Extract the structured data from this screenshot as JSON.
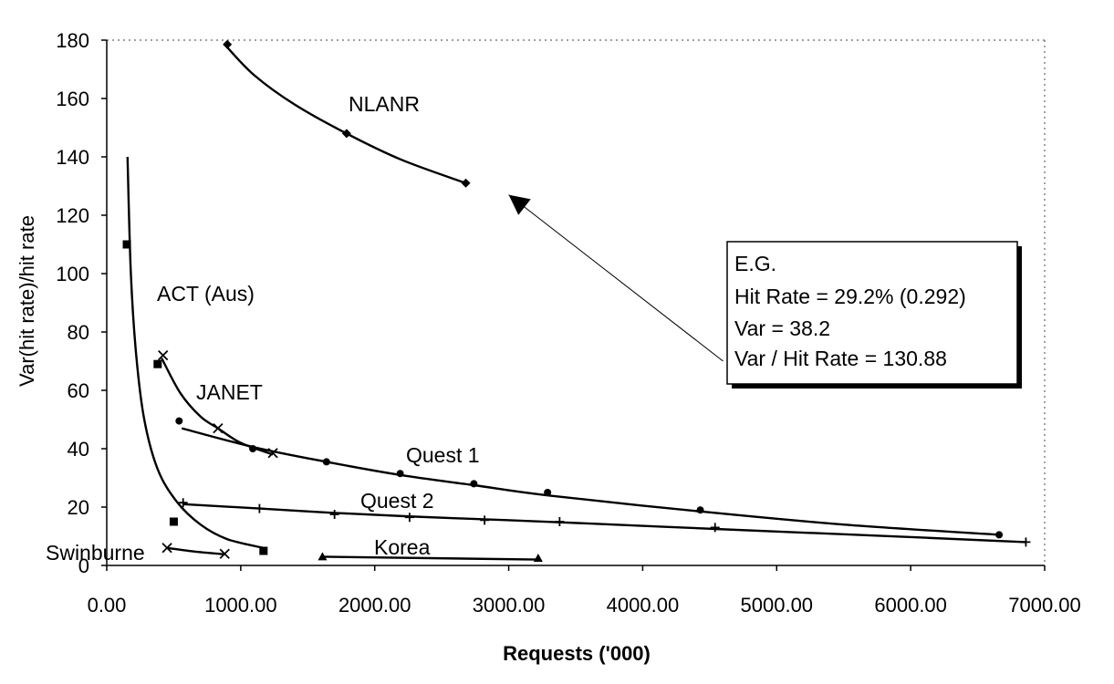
{
  "chart_data": {
    "type": "scatter",
    "xlabel": "Requests ('000)",
    "ylabel": "Var(hit rate)/hit rate",
    "xlim": [
      0,
      7000
    ],
    "ylim": [
      0,
      180
    ],
    "x_ticks": [
      "0.00",
      "1000.00",
      "2000.00",
      "3000.00",
      "4000.00",
      "5000.00",
      "6000.00",
      "7000.00"
    ],
    "y_ticks": [
      "0",
      "20",
      "40",
      "60",
      "80",
      "100",
      "120",
      "140",
      "160",
      "180"
    ],
    "grid": "dotted top and right border only",
    "legend": "none (series labelled directly)",
    "series": [
      {
        "name": "NLANR",
        "marker": "diamond",
        "points": [
          [
            900,
            178.5
          ],
          [
            1790,
            148
          ],
          [
            2680,
            131
          ]
        ],
        "fit": [
          [
            890,
            178
          ],
          [
            1100,
            168
          ],
          [
            1400,
            158
          ],
          [
            1790,
            148
          ],
          [
            2200,
            139
          ],
          [
            2680,
            131
          ]
        ]
      },
      {
        "name": "ACT (Aus)",
        "marker": "square",
        "points": [
          [
            150,
            110
          ],
          [
            380,
            69
          ],
          [
            500,
            15
          ],
          [
            1170,
            5
          ]
        ],
        "fit": [
          [
            155,
            140
          ],
          [
            180,
            100
          ],
          [
            220,
            72
          ],
          [
            280,
            50
          ],
          [
            380,
            33
          ],
          [
            520,
            22
          ],
          [
            700,
            14
          ],
          [
            900,
            9
          ],
          [
            1170,
            6
          ]
        ]
      },
      {
        "name": "JANET",
        "marker": "x",
        "points": [
          [
            420,
            72
          ],
          [
            830,
            47
          ],
          [
            1240,
            38.5
          ]
        ],
        "fit": [
          [
            410,
            71
          ],
          [
            550,
            59
          ],
          [
            700,
            51
          ],
          [
            830,
            47
          ],
          [
            1000,
            42
          ],
          [
            1240,
            38
          ]
        ]
      },
      {
        "name": "Quest 1",
        "marker": "circle",
        "points": [
          [
            540,
            49.5
          ],
          [
            1090,
            40
          ],
          [
            1640,
            35.5
          ],
          [
            2190,
            31.5
          ],
          [
            2740,
            28
          ],
          [
            3290,
            25
          ],
          [
            4430,
            19
          ],
          [
            6660,
            10.5
          ]
        ],
        "fit": [
          [
            560,
            47
          ],
          [
            1100,
            40.5
          ],
          [
            1640,
            35.5
          ],
          [
            2190,
            31
          ],
          [
            2740,
            27.5
          ],
          [
            3290,
            24
          ],
          [
            4430,
            18.5
          ],
          [
            5500,
            14
          ],
          [
            6660,
            10.5
          ]
        ]
      },
      {
        "name": "Quest 2",
        "marker": "plus",
        "points": [
          [
            570,
            21.5
          ],
          [
            1140,
            19.5
          ],
          [
            1700,
            17.5
          ],
          [
            2260,
            16.5
          ],
          [
            2820,
            15.5
          ],
          [
            3380,
            15
          ],
          [
            4540,
            13
          ],
          [
            6860,
            8
          ]
        ],
        "fit": [
          [
            570,
            21
          ],
          [
            1140,
            19.5
          ],
          [
            1700,
            18
          ],
          [
            2260,
            16.8
          ],
          [
            2820,
            15.8
          ],
          [
            3380,
            14.8
          ],
          [
            4540,
            12.5
          ],
          [
            5700,
            10.3
          ],
          [
            6860,
            8
          ]
        ]
      },
      {
        "name": "Swinburne",
        "marker": "x",
        "points": [
          [
            450,
            6
          ],
          [
            880,
            4
          ]
        ],
        "fit": [
          [
            450,
            6
          ],
          [
            650,
            4.8
          ],
          [
            880,
            3.8
          ]
        ]
      },
      {
        "name": "Korea",
        "marker": "triangle",
        "points": [
          [
            1610,
            3
          ],
          [
            3220,
            2.5
          ]
        ],
        "fit": [
          [
            1610,
            3
          ],
          [
            3220,
            2
          ]
        ]
      }
    ],
    "annotation": {
      "lines": [
        "E.G.",
        "Hit Rate = 29.2% (0.292)",
        "Var = 38.2",
        "Var / Hit Rate = 130.88"
      ],
      "arrow_to": [
        3000,
        127
      ],
      "arrow_from": [
        4600,
        70
      ]
    }
  }
}
